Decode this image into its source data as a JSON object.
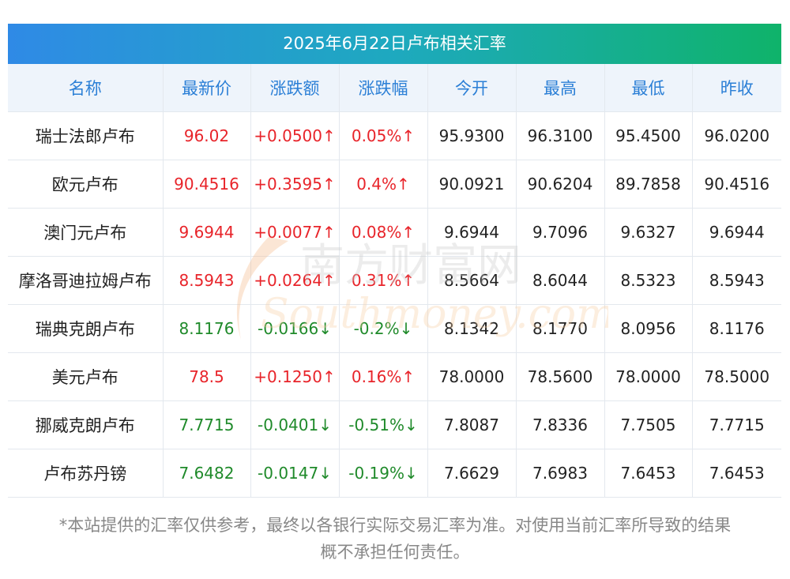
{
  "title": "2025年6月22日卢布相关汇率",
  "headers": [
    "名称",
    "最新价",
    "涨跌额",
    "涨跌幅",
    "今开",
    "最高",
    "最低",
    "昨收"
  ],
  "rows": [
    {
      "name": "瑞士法郎卢布",
      "latest": "96.02",
      "change": "+0.0500↑",
      "pct": "0.05%↑",
      "open": "95.9300",
      "high": "96.3100",
      "low": "95.4500",
      "prev": "96.0200",
      "dir": "up"
    },
    {
      "name": "欧元卢布",
      "latest": "90.4516",
      "change": "+0.3595↑",
      "pct": "0.4%↑",
      "open": "90.0921",
      "high": "90.6204",
      "low": "89.7858",
      "prev": "90.4516",
      "dir": "up"
    },
    {
      "name": "澳门元卢布",
      "latest": "9.6944",
      "change": "+0.0077↑",
      "pct": "0.08%↑",
      "open": "9.6944",
      "high": "9.7096",
      "low": "9.6327",
      "prev": "9.6944",
      "dir": "up"
    },
    {
      "name": "摩洛哥迪拉姆卢布",
      "latest": "8.5943",
      "change": "+0.0264↑",
      "pct": "0.31%↑",
      "open": "8.5664",
      "high": "8.6044",
      "low": "8.5323",
      "prev": "8.5943",
      "dir": "up"
    },
    {
      "name": "瑞典克朗卢布",
      "latest": "8.1176",
      "change": "-0.0166↓",
      "pct": "-0.2%↓",
      "open": "8.1342",
      "high": "8.1770",
      "low": "8.0956",
      "prev": "8.1176",
      "dir": "down"
    },
    {
      "name": "美元卢布",
      "latest": "78.5",
      "change": "+0.1250↑",
      "pct": "0.16%↑",
      "open": "78.0000",
      "high": "78.5600",
      "low": "78.0000",
      "prev": "78.5000",
      "dir": "up"
    },
    {
      "name": "挪威克朗卢布",
      "latest": "7.7715",
      "change": "-0.0401↓",
      "pct": "-0.51%↓",
      "open": "7.8087",
      "high": "7.8336",
      "low": "7.7505",
      "prev": "7.7715",
      "dir": "down"
    },
    {
      "name": "卢布苏丹镑",
      "latest": "7.6482",
      "change": "-0.0147↓",
      "pct": "-0.19%↓",
      "open": "7.6629",
      "high": "7.6983",
      "low": "7.6453",
      "prev": "7.6453",
      "dir": "down"
    }
  ],
  "watermark": {
    "cn": "南方财富网",
    "en": "Southmoney.com"
  },
  "footnote": {
    "line1": "*本站提供的汇率仅供参考，最终以各银行实际交易汇率为准。对使用当前汇率所导致的结果",
    "line2": "概不承担任何责任。"
  },
  "colors": {
    "up": "#e8242a",
    "down": "#1f8a2a",
    "header_text": "#2b7fd6",
    "header_bg": "#eef4fb",
    "title_start": "#2f8ae6",
    "title_end": "#0fb36a"
  }
}
